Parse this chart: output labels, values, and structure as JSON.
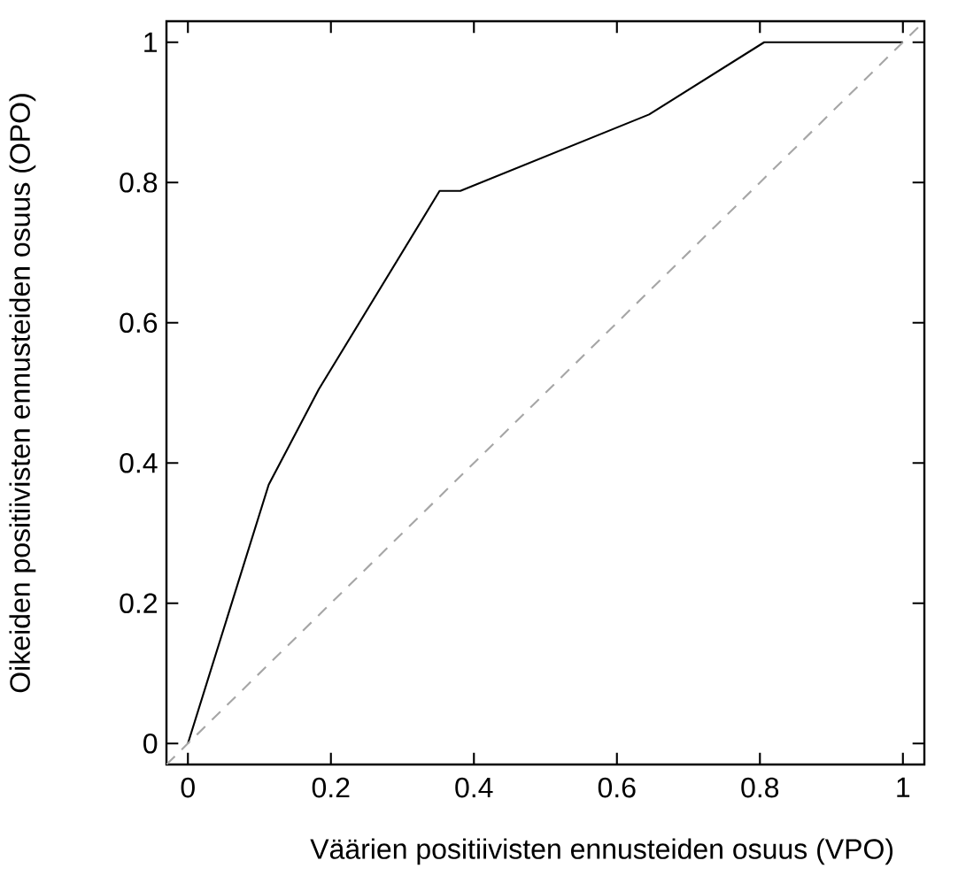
{
  "chart_data": {
    "type": "line",
    "xlabel": "Väärien positiivisten ennusteiden osuus (VPO)",
    "ylabel": "Oikeiden positiivisten ennusteiden osuus (OPO)",
    "xlim": [
      -0.03,
      1.03
    ],
    "ylim": [
      -0.03,
      1.03
    ],
    "xticks": [
      0,
      0.2,
      0.4,
      0.6,
      0.8,
      1
    ],
    "yticks": [
      0,
      0.2,
      0.4,
      0.6,
      0.8,
      1
    ],
    "series": [
      {
        "color": "#000000",
        "line_style": "solid",
        "x": [
          0,
          0.113,
          0.183,
          0.352,
          0.381,
          0.645,
          0.806,
          1
        ],
        "values": [
          0,
          0.369,
          0.505,
          0.788,
          0.788,
          0.897,
          1,
          1
        ]
      },
      {
        "color": "#a6a6a6",
        "line_style": "dashed",
        "x": [
          -0.03,
          1.03
        ],
        "values": [
          -0.03,
          1.03
        ]
      }
    ]
  }
}
